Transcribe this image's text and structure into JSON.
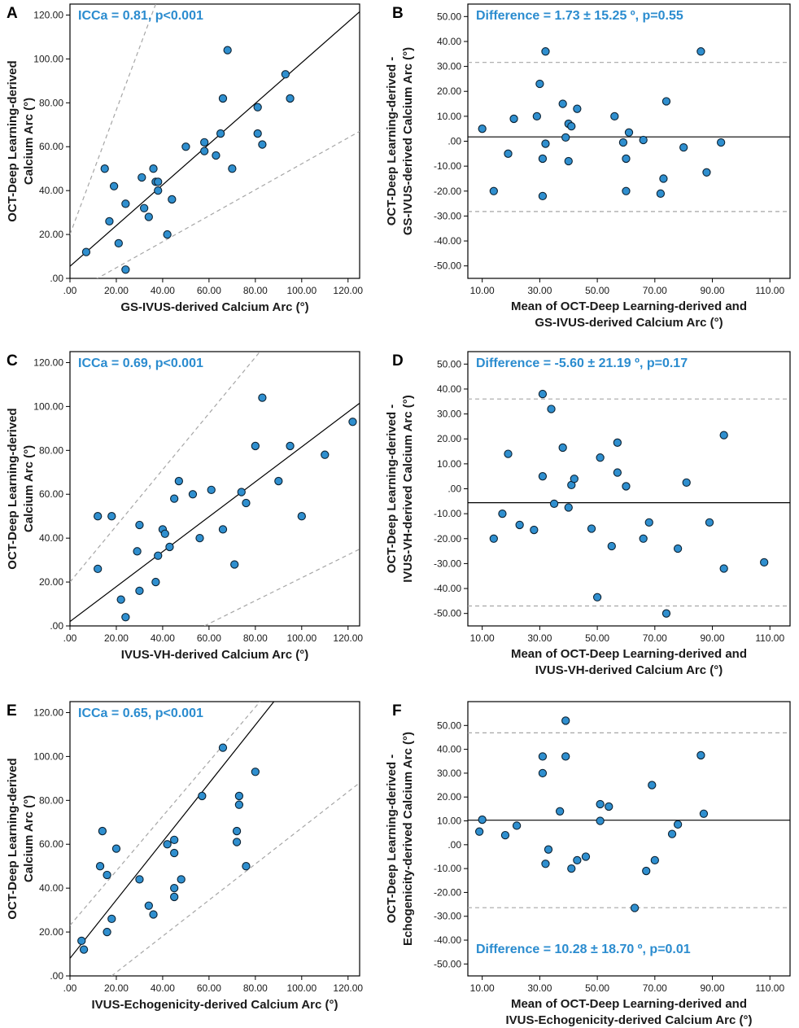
{
  "colors": {
    "point_fill": "#2f8fcf",
    "point_stroke": "#0c2233",
    "annotation": "#2b8ccf",
    "line": "#000000",
    "dashed": "#a6a6a6"
  },
  "chart_data": [
    {
      "panel": "A",
      "type": "scatter",
      "annotation": "ICCa = 0.81, p<0.001",
      "annotation_position": "top-left",
      "xlabel": [
        "GS-IVUS-derived Calcium Arc (°)"
      ],
      "ylabel": [
        "OCT-Deep Learning-derived",
        "Calcium Arc (°)"
      ],
      "xlim": [
        0,
        125
      ],
      "ylim": [
        0,
        125
      ],
      "xticks": [
        0,
        20,
        40,
        60,
        80,
        100,
        120
      ],
      "xtick_labels": [
        ".00",
        "20.00",
        "40.00",
        "60.00",
        "80.00",
        "100.00",
        "120.00"
      ],
      "yticks": [
        0,
        20,
        40,
        60,
        80,
        100,
        120
      ],
      "ytick_labels": [
        ".00",
        "20.00",
        "40.00",
        "60.00",
        "80.00",
        "100.00",
        "120.00"
      ],
      "fit_line": [
        [
          0,
          5.5
        ],
        [
          125,
          121.5
        ]
      ],
      "dashed_lines": [
        [
          [
            0,
            20
          ],
          [
            37,
            125
          ]
        ],
        [
          [
            0,
            -7
          ],
          [
            125,
            67
          ]
        ]
      ],
      "points": [
        [
          7,
          12
        ],
        [
          15,
          50
        ],
        [
          17,
          26
        ],
        [
          19,
          42
        ],
        [
          21,
          16
        ],
        [
          24,
          4
        ],
        [
          24,
          34
        ],
        [
          31,
          46
        ],
        [
          32,
          32
        ],
        [
          34,
          28
        ],
        [
          36,
          50
        ],
        [
          37,
          44
        ],
        [
          38,
          44
        ],
        [
          38,
          40
        ],
        [
          42,
          20
        ],
        [
          44,
          36
        ],
        [
          50,
          60
        ],
        [
          58,
          62
        ],
        [
          58,
          58
        ],
        [
          63,
          56
        ],
        [
          65,
          66
        ],
        [
          66,
          82
        ],
        [
          68,
          104
        ],
        [
          70,
          50
        ],
        [
          81,
          78
        ],
        [
          81,
          66
        ],
        [
          83,
          61
        ],
        [
          93,
          93
        ],
        [
          95,
          82
        ]
      ]
    },
    {
      "panel": "B",
      "type": "scatter",
      "annotation": "Difference = 1.73 ± 15.25 º, p=0.55",
      "annotation_position": "top-left",
      "xlabel": [
        "Mean of OCT-Deep Learning-derived and",
        "GS-IVUS-derived Calcium Arc (°)"
      ],
      "ylabel": [
        "OCT-Deep Learning-derived -",
        "GS-IVUS-derived Calcium Arc (°)"
      ],
      "xlim": [
        5,
        117
      ],
      "ylim": [
        -55,
        55
      ],
      "xticks": [
        10,
        30,
        50,
        70,
        90,
        110
      ],
      "xtick_labels": [
        "10.00",
        "30.00",
        "50.00",
        "70.00",
        "90.00",
        "110.00"
      ],
      "yticks": [
        -50,
        -40,
        -30,
        -20,
        -10,
        0,
        10,
        20,
        30,
        40,
        50
      ],
      "ytick_labels": [
        "-50.00",
        "-40.00",
        "-30.00",
        "-20.00",
        "-10.00",
        ".00",
        "10.00",
        "20.00",
        "30.00",
        "40.00",
        "50.00"
      ],
      "mean_line": 1.73,
      "limit_lines": [
        31.6,
        -28.2
      ],
      "points": [
        [
          10,
          5
        ],
        [
          14,
          -20
        ],
        [
          19,
          -5
        ],
        [
          21,
          9
        ],
        [
          29,
          10
        ],
        [
          30,
          23
        ],
        [
          31,
          -22
        ],
        [
          31,
          -7
        ],
        [
          32,
          36
        ],
        [
          32,
          -1
        ],
        [
          38,
          15
        ],
        [
          39,
          1.5
        ],
        [
          40,
          -8
        ],
        [
          40,
          7
        ],
        [
          41,
          6
        ],
        [
          43,
          13
        ],
        [
          56,
          10
        ],
        [
          59,
          -0.5
        ],
        [
          60,
          -7
        ],
        [
          60,
          -20
        ],
        [
          61,
          3.5
        ],
        [
          66,
          0.5
        ],
        [
          72,
          -21
        ],
        [
          73,
          -15
        ],
        [
          74,
          16
        ],
        [
          80,
          -2.5
        ],
        [
          86,
          36
        ],
        [
          88,
          -12.5
        ],
        [
          93,
          -0.5
        ]
      ]
    },
    {
      "panel": "C",
      "type": "scatter",
      "annotation": "ICCa = 0.69, p<0.001",
      "annotation_position": "top-left",
      "xlabel": [
        "IVUS-VH-derived Calcium Arc (°)"
      ],
      "ylabel": [
        "OCT-Deep Learning-derived",
        "Calcium Arc (°)"
      ],
      "xlim": [
        0,
        125
      ],
      "ylim": [
        0,
        125
      ],
      "xticks": [
        0,
        20,
        40,
        60,
        80,
        100,
        120
      ],
      "xtick_labels": [
        ".00",
        "20.00",
        "40.00",
        "60.00",
        "80.00",
        "100.00",
        "120.00"
      ],
      "yticks": [
        0,
        20,
        40,
        60,
        80,
        100,
        120
      ],
      "ytick_labels": [
        ".00",
        "20.00",
        "40.00",
        "60.00",
        "80.00",
        "100.00",
        "120.00"
      ],
      "fit_line": [
        [
          0,
          2
        ],
        [
          125,
          101.5
        ]
      ],
      "dashed_lines": [
        [
          [
            0,
            20
          ],
          [
            82,
            125
          ]
        ],
        [
          [
            58,
            0
          ],
          [
            125,
            35
          ]
        ]
      ],
      "points": [
        [
          12,
          50
        ],
        [
          12,
          26
        ],
        [
          18,
          50
        ],
        [
          22,
          12
        ],
        [
          24,
          4
        ],
        [
          29,
          34
        ],
        [
          30,
          46
        ],
        [
          30,
          16
        ],
        [
          37,
          20
        ],
        [
          38,
          32
        ],
        [
          40,
          44
        ],
        [
          41,
          42
        ],
        [
          43,
          36
        ],
        [
          45,
          58
        ],
        [
          47,
          66
        ],
        [
          53,
          60
        ],
        [
          56,
          40
        ],
        [
          61,
          62
        ],
        [
          66,
          44
        ],
        [
          71,
          28
        ],
        [
          74,
          61
        ],
        [
          76,
          56
        ],
        [
          80,
          82
        ],
        [
          83,
          104
        ],
        [
          90,
          66
        ],
        [
          95,
          82
        ],
        [
          100,
          50
        ],
        [
          110,
          78
        ],
        [
          122,
          93
        ]
      ]
    },
    {
      "panel": "D",
      "type": "scatter",
      "annotation": "Difference = -5.60 ± 21.19 º, p=0.17",
      "annotation_position": "top-left",
      "xlabel": [
        "Mean of OCT-Deep Learning-derived and",
        "IVUS-VH-derived Calcium Arc (°)"
      ],
      "ylabel": [
        "OCT-Deep Learning-derived -",
        "IVUS-VH-derived Calcium Arc (°)"
      ],
      "xlim": [
        5,
        117
      ],
      "ylim": [
        -55,
        55
      ],
      "xticks": [
        10,
        30,
        50,
        70,
        90,
        110
      ],
      "xtick_labels": [
        "10.00",
        "30.00",
        "50.00",
        "70.00",
        "90.00",
        "110.00"
      ],
      "yticks": [
        -50,
        -40,
        -30,
        -20,
        -10,
        0,
        10,
        20,
        30,
        40,
        50
      ],
      "ytick_labels": [
        "-50.00",
        "-40.00",
        "-30.00",
        "-20.00",
        "-10.00",
        ".00",
        "10.00",
        "20.00",
        "30.00",
        "40.00",
        "50.00"
      ],
      "mean_line": -5.6,
      "limit_lines": [
        36,
        -47
      ],
      "points": [
        [
          14,
          -20
        ],
        [
          17,
          -10
        ],
        [
          19,
          14
        ],
        [
          23,
          -14.5
        ],
        [
          28,
          -16.5
        ],
        [
          31,
          38
        ],
        [
          31,
          5
        ],
        [
          34,
          32
        ],
        [
          35,
          -6
        ],
        [
          38,
          16.5
        ],
        [
          40,
          -7.5
        ],
        [
          41,
          1.5
        ],
        [
          42,
          4
        ],
        [
          48,
          -16
        ],
        [
          50,
          -43.5
        ],
        [
          51,
          12.5
        ],
        [
          55,
          -23
        ],
        [
          57,
          6.5
        ],
        [
          57,
          18.5
        ],
        [
          60,
          1
        ],
        [
          66,
          -20
        ],
        [
          68,
          -13.5
        ],
        [
          74,
          -50
        ],
        [
          78,
          -24
        ],
        [
          81,
          2.5
        ],
        [
          89,
          -13.5
        ],
        [
          94,
          21.5
        ],
        [
          94,
          -32
        ],
        [
          108,
          -29.5
        ]
      ]
    },
    {
      "panel": "E",
      "type": "scatter",
      "annotation": "ICCa = 0.65, p<0.001",
      "annotation_position": "top-left",
      "xlabel": [
        "IVUS-Echogenicity-derived Calcium Arc (°)"
      ],
      "ylabel": [
        "OCT-Deep Learning-derived",
        "Calcium Arc (°)"
      ],
      "xlim": [
        0,
        125
      ],
      "ylim": [
        0,
        125
      ],
      "xticks": [
        0,
        20,
        40,
        60,
        80,
        100,
        120
      ],
      "xtick_labels": [
        ".00",
        "20.00",
        "40.00",
        "60.00",
        "80.00",
        "100.00",
        "120.00"
      ],
      "yticks": [
        0,
        20,
        40,
        60,
        80,
        100,
        120
      ],
      "ytick_labels": [
        ".00",
        "20.00",
        "40.00",
        "60.00",
        "80.00",
        "100.00",
        "120.00"
      ],
      "fit_line": [
        [
          0,
          8
        ],
        [
          88,
          125
        ]
      ],
      "dashed_lines": [
        [
          [
            0,
            23
          ],
          [
            82,
            125
          ]
        ],
        [
          [
            18,
            0
          ],
          [
            125,
            88
          ]
        ]
      ],
      "points": [
        [
          5,
          16
        ],
        [
          6,
          12
        ],
        [
          13,
          50
        ],
        [
          14,
          66
        ],
        [
          16,
          46
        ],
        [
          16,
          20
        ],
        [
          18,
          26
        ],
        [
          20,
          58
        ],
        [
          30,
          44
        ],
        [
          34,
          32
        ],
        [
          36,
          28
        ],
        [
          42,
          60
        ],
        [
          45,
          62
        ],
        [
          45,
          40
        ],
        [
          45,
          56
        ],
        [
          45,
          36
        ],
        [
          48,
          44
        ],
        [
          57,
          82
        ],
        [
          66,
          104
        ],
        [
          72,
          66
        ],
        [
          72,
          61
        ],
        [
          73,
          82
        ],
        [
          73,
          78
        ],
        [
          76,
          50
        ],
        [
          80,
          93
        ]
      ]
    },
    {
      "panel": "F",
      "type": "scatter",
      "annotation": "Difference = 10.28 ± 18.70 º, p=0.01",
      "annotation_position": "bottom-left",
      "xlabel": [
        "Mean of OCT-Deep Learning-derived and",
        "IVUS-Echogenicity-derived Calcium Arc (°)"
      ],
      "ylabel": [
        "OCT-Deep Learning-derived -",
        "Echogenicity-derived Calcium Arc (°)"
      ],
      "xlim": [
        5,
        117
      ],
      "ylim": [
        -55,
        60
      ],
      "xticks": [
        10,
        30,
        50,
        70,
        90,
        110
      ],
      "xtick_labels": [
        "10.00",
        "30.00",
        "50.00",
        "70.00",
        "90.00",
        "110.00"
      ],
      "yticks": [
        -50,
        -40,
        -30,
        -20,
        -10,
        0,
        10,
        20,
        30,
        40,
        50
      ],
      "ytick_labels": [
        "-50.00",
        "-40.00",
        "-30.00",
        "-20.00",
        "-10.00",
        ".00",
        "10.00",
        "20.00",
        "30.00",
        "40.00",
        "50.00"
      ],
      "mean_line": 10.28,
      "limit_lines": [
        46.9,
        -26.4
      ],
      "points": [
        [
          9,
          5.5
        ],
        [
          10,
          10.5
        ],
        [
          18,
          4
        ],
        [
          22,
          8
        ],
        [
          31,
          30
        ],
        [
          31,
          37
        ],
        [
          32,
          -8
        ],
        [
          33,
          -2
        ],
        [
          37,
          14
        ],
        [
          39,
          37
        ],
        [
          39,
          52
        ],
        [
          41,
          -10
        ],
        [
          43,
          -6.5
        ],
        [
          46,
          -5
        ],
        [
          51,
          17
        ],
        [
          51,
          10
        ],
        [
          54,
          16
        ],
        [
          63,
          -26.5
        ],
        [
          67,
          -11
        ],
        [
          69,
          25
        ],
        [
          70,
          -6.5
        ],
        [
          76,
          4.5
        ],
        [
          78,
          8.5
        ],
        [
          86,
          37.5
        ],
        [
          87,
          13
        ]
      ]
    }
  ]
}
